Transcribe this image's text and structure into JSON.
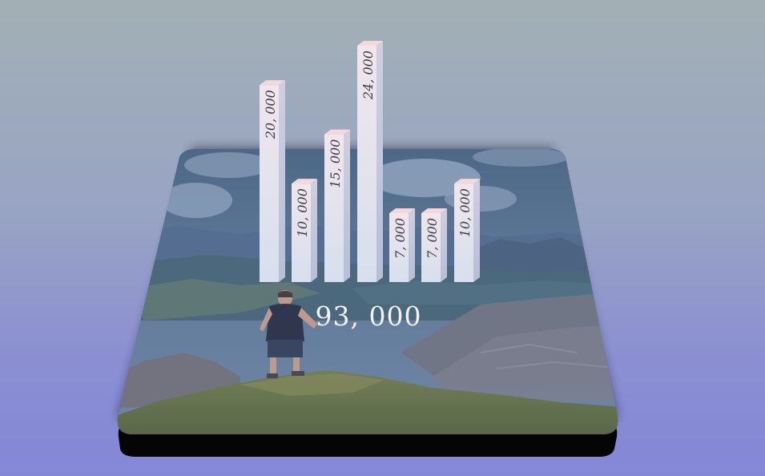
{
  "chart_data": {
    "type": "bar",
    "style": "3d-columns-on-photo-platform",
    "values": [
      20000,
      10000,
      15000,
      24000,
      7000,
      7000,
      10000
    ],
    "value_labels": [
      "20, 000",
      "10, 000",
      "15, 000",
      "24, 000",
      "7, 000",
      "7, 000",
      "10, 000"
    ],
    "total": 93000,
    "total_label": "93, 000",
    "colors": {
      "bar_top": "#f4d9dc",
      "bar_front": "#e3e4ef",
      "bar_side": "#c3c8da",
      "label_text": "#3d3e4a",
      "total_text": "#f1f1f6"
    }
  },
  "scene": {
    "background_photo": "mountain-hiker-photo",
    "platform_shadow_color": "#050505"
  }
}
